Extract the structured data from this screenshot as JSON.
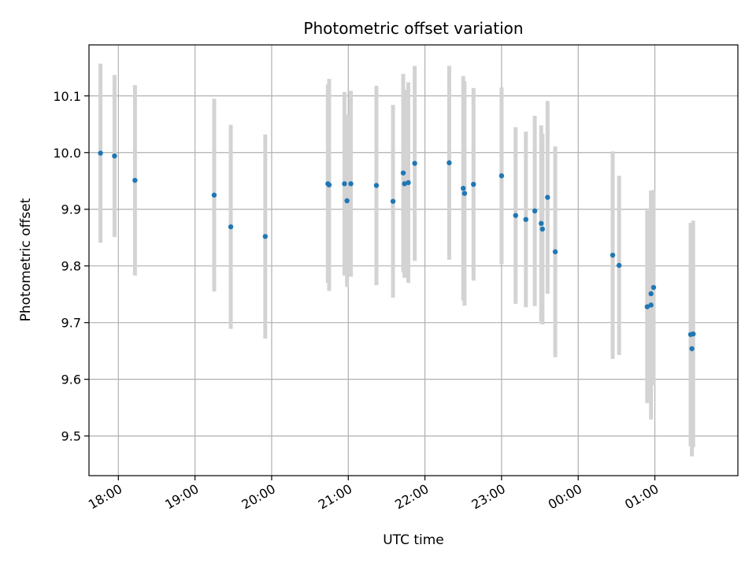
{
  "chart_data": {
    "type": "scatter",
    "title": "Photometric offset variation",
    "xlabel": "UTC time",
    "ylabel": "Photometric offset",
    "x_axis_type": "time",
    "xlim": [
      "17:37",
      "02:05"
    ],
    "ylim": [
      9.43,
      10.19
    ],
    "x_ticks": [
      "18:00",
      "19:00",
      "20:00",
      "21:00",
      "22:00",
      "23:00",
      "00:00",
      "01:00"
    ],
    "y_ticks": [
      9.5,
      9.6,
      9.7,
      9.8,
      9.9,
      10.0,
      10.1
    ],
    "grid": true,
    "point_color": "#1f77b4",
    "errorbar_color": "#d3d3d3",
    "points": [
      {
        "time": "17:46",
        "value": 9.999,
        "err": 0.158
      },
      {
        "time": "17:57",
        "value": 9.994,
        "err": 0.143
      },
      {
        "time": "18:13",
        "value": 9.951,
        "err": 0.168
      },
      {
        "time": "19:15",
        "value": 9.925,
        "err": 0.17
      },
      {
        "time": "19:28",
        "value": 9.869,
        "err": 0.18
      },
      {
        "time": "19:55",
        "value": 9.852,
        "err": 0.18
      },
      {
        "time": "20:44",
        "value": 9.945,
        "err": 0.175
      },
      {
        "time": "20:45",
        "value": 9.943,
        "err": 0.187
      },
      {
        "time": "20:57",
        "value": 9.945,
        "err": 0.162
      },
      {
        "time": "20:59",
        "value": 9.915,
        "err": 0.152
      },
      {
        "time": "21:02",
        "value": 9.945,
        "err": 0.164
      },
      {
        "time": "21:22",
        "value": 9.942,
        "err": 0.176
      },
      {
        "time": "21:35",
        "value": 9.914,
        "err": 0.17
      },
      {
        "time": "21:43",
        "value": 9.964,
        "err": 0.175
      },
      {
        "time": "21:44",
        "value": 9.945,
        "err": 0.166
      },
      {
        "time": "21:47",
        "value": 9.947,
        "err": 0.177
      },
      {
        "time": "21:52",
        "value": 9.981,
        "err": 0.172
      },
      {
        "time": "22:19",
        "value": 9.982,
        "err": 0.171
      },
      {
        "time": "22:30",
        "value": 9.937,
        "err": 0.198
      },
      {
        "time": "22:31",
        "value": 9.928,
        "err": 0.198
      },
      {
        "time": "22:38",
        "value": 9.944,
        "err": 0.17
      },
      {
        "time": "23:00",
        "value": 9.959,
        "err": 0.156
      },
      {
        "time": "23:11",
        "value": 9.889,
        "err": 0.156
      },
      {
        "time": "23:19",
        "value": 9.882,
        "err": 0.155
      },
      {
        "time": "23:26",
        "value": 9.897,
        "err": 0.168
      },
      {
        "time": "23:31",
        "value": 9.875,
        "err": 0.173
      },
      {
        "time": "23:32",
        "value": 9.865,
        "err": 0.168
      },
      {
        "time": "23:36",
        "value": 9.921,
        "err": 0.17
      },
      {
        "time": "23:42",
        "value": 9.825,
        "err": 0.186
      },
      {
        "time": "00:27",
        "value": 9.819,
        "err": 0.183
      },
      {
        "time": "00:32",
        "value": 9.801,
        "err": 0.158
      },
      {
        "time": "00:54",
        "value": 9.728,
        "err": 0.17
      },
      {
        "time": "00:57",
        "value": 9.731,
        "err": 0.202
      },
      {
        "time": "00:57",
        "value": 9.751,
        "err": 0.178
      },
      {
        "time": "00:59",
        "value": 9.762,
        "err": 0.172
      },
      {
        "time": "01:28",
        "value": 9.679,
        "err": 0.197
      },
      {
        "time": "01:29",
        "value": 9.654,
        "err": 0.19
      },
      {
        "time": "01:30",
        "value": 9.68,
        "err": 0.2
      }
    ]
  }
}
